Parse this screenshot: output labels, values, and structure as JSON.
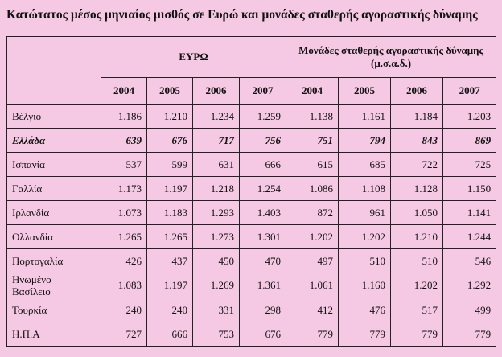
{
  "title": "Κατώτατος μέσος μηνιαίος μισθός σε Ευρώ και μονάδες σταθερής αγοραστικής δύναμης",
  "table": {
    "groups": [
      "ΕΥΡΩ",
      "Μονάδες σταθερής αγοραστικής δύναμης (μ.σ.α.δ.)"
    ],
    "years": [
      "2004",
      "2005",
      "2006",
      "2007",
      "2004",
      "2005",
      "2006",
      "2007"
    ],
    "rows": [
      {
        "country": "Βέλγιο",
        "values": [
          "1.186",
          "1.210",
          "1.234",
          "1.259",
          "1.138",
          "1.161",
          "1.184",
          "1.203"
        ]
      },
      {
        "country": "Ελλάδα",
        "highlight": true,
        "values": [
          "639",
          "676",
          "717",
          "756",
          "751",
          "794",
          "843",
          "869"
        ]
      },
      {
        "country": "Ισπανία",
        "values": [
          "537",
          "599",
          "631",
          "666",
          "615",
          "685",
          "722",
          "725"
        ]
      },
      {
        "country": "Γαλλία",
        "values": [
          "1.173",
          "1.197",
          "1.218",
          "1.254",
          "1.086",
          "1.108",
          "1.128",
          "1.150"
        ]
      },
      {
        "country": "Ιρλανδία",
        "values": [
          "1.073",
          "1.183",
          "1.293",
          "1.403",
          "872",
          "961",
          "1.050",
          "1.141"
        ]
      },
      {
        "country": "Ολλανδία",
        "values": [
          "1.265",
          "1.265",
          "1.273",
          "1.301",
          "1.202",
          "1.202",
          "1.210",
          "1.244"
        ]
      },
      {
        "country": "Πορτογαλία",
        "values": [
          "426",
          "437",
          "450",
          "470",
          "497",
          "510",
          "510",
          "546"
        ]
      },
      {
        "country": "Ηνωμένο\nΒασίλειο",
        "values": [
          "1.083",
          "1.197",
          "1.269",
          "1.361",
          "1.061",
          "1.160",
          "1.202",
          "1.292"
        ]
      },
      {
        "country": "Τουρκία",
        "values": [
          "240",
          "240",
          "331",
          "298",
          "412",
          "476",
          "517",
          "499"
        ]
      },
      {
        "country": "Η.Π.Α",
        "values": [
          "727",
          "666",
          "753",
          "676",
          "779",
          "779",
          "779",
          "779"
        ]
      }
    ]
  }
}
